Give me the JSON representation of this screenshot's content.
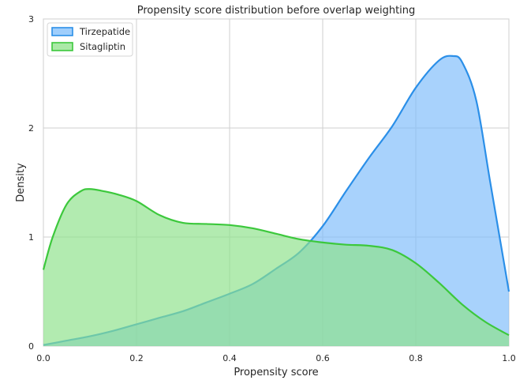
{
  "chart_data": {
    "type": "area",
    "title": "Propensity score distribution before overlap weighting",
    "xlabel": "Propensity score",
    "ylabel": "Density",
    "xlim": [
      0.0,
      1.0
    ],
    "ylim": [
      0,
      3
    ],
    "xticks": [
      "0.0",
      "0.2",
      "0.4",
      "0.6",
      "0.8",
      "1.0"
    ],
    "yticks": [
      "0",
      "1",
      "2",
      "3"
    ],
    "grid": true,
    "legend_position": "top-left",
    "series": [
      {
        "name": "Tirzepatide",
        "line_color": "#2b8fe8",
        "fill_color": "#7fbdfb",
        "x": [
          0.0,
          0.05,
          0.1,
          0.15,
          0.2,
          0.25,
          0.3,
          0.35,
          0.4,
          0.45,
          0.5,
          0.55,
          0.6,
          0.65,
          0.7,
          0.75,
          0.8,
          0.85,
          0.88,
          0.9,
          0.93,
          0.96,
          1.0
        ],
        "y": [
          0.01,
          0.05,
          0.09,
          0.14,
          0.2,
          0.26,
          0.32,
          0.4,
          0.48,
          0.57,
          0.71,
          0.86,
          1.1,
          1.42,
          1.73,
          2.02,
          2.37,
          2.62,
          2.66,
          2.6,
          2.25,
          1.5,
          0.5
        ]
      },
      {
        "name": "Sitagliptin",
        "line_color": "#3cc83c",
        "fill_color": "#8ee28a",
        "x": [
          0.0,
          0.02,
          0.05,
          0.08,
          0.1,
          0.13,
          0.16,
          0.2,
          0.25,
          0.3,
          0.35,
          0.4,
          0.45,
          0.5,
          0.55,
          0.6,
          0.65,
          0.7,
          0.75,
          0.8,
          0.85,
          0.9,
          0.95,
          1.0
        ],
        "y": [
          0.7,
          1.0,
          1.3,
          1.42,
          1.44,
          1.42,
          1.39,
          1.33,
          1.2,
          1.13,
          1.12,
          1.11,
          1.08,
          1.03,
          0.98,
          0.95,
          0.93,
          0.92,
          0.88,
          0.76,
          0.58,
          0.38,
          0.22,
          0.1
        ]
      }
    ]
  }
}
